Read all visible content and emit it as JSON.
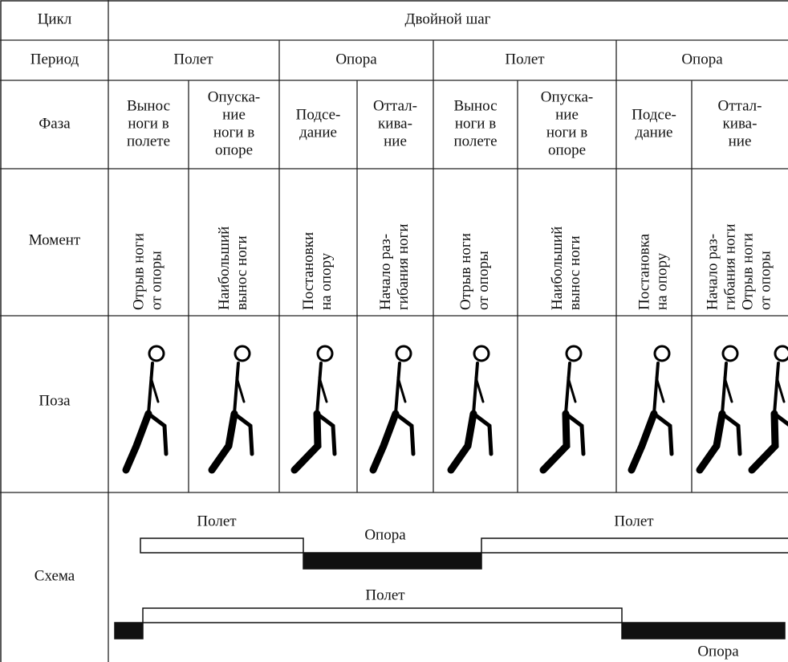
{
  "row_headers": [
    "Цикл",
    "Период",
    "Фаза",
    "Момент",
    "Поза",
    "Схема"
  ],
  "cycle": "Двойной шаг",
  "periods": [
    "Полет",
    "Опора",
    "Полет",
    "Опора"
  ],
  "phases": [
    [
      "Вынос",
      "ноги в",
      "полете"
    ],
    [
      "Опуска-",
      "ние",
      "ноги в",
      "опоре"
    ],
    [
      "Подсе-",
      "дание"
    ],
    [
      "Оттал-",
      "кива-",
      "ние"
    ],
    [
      "Вынос",
      "ноги в",
      "полете"
    ],
    [
      "Опуска-",
      "ние",
      "ноги в",
      "опоре"
    ],
    [
      "Подсе-",
      "дание"
    ],
    [
      "Оттал-",
      "кива-",
      "ние"
    ]
  ],
  "moments": [
    [
      "Отрыв ноги",
      "от опоры"
    ],
    [
      "Наибольший",
      "вынос ноги"
    ],
    [
      "Постановки",
      "на опору"
    ],
    [
      "Начало раз-",
      "гибания ноги"
    ],
    [
      "Отрыв ноги",
      "от опоры"
    ],
    [
      "Наибольший",
      "вынос ноги"
    ],
    [
      "Постановка",
      "на опору"
    ],
    [
      "Начало раз-",
      "гибания ноги",
      "Отрыв ноги",
      "от опоры"
    ]
  ],
  "schema": {
    "labels": [
      "Полет",
      "Опора",
      "Полет",
      "Полет",
      "Опора"
    ]
  }
}
